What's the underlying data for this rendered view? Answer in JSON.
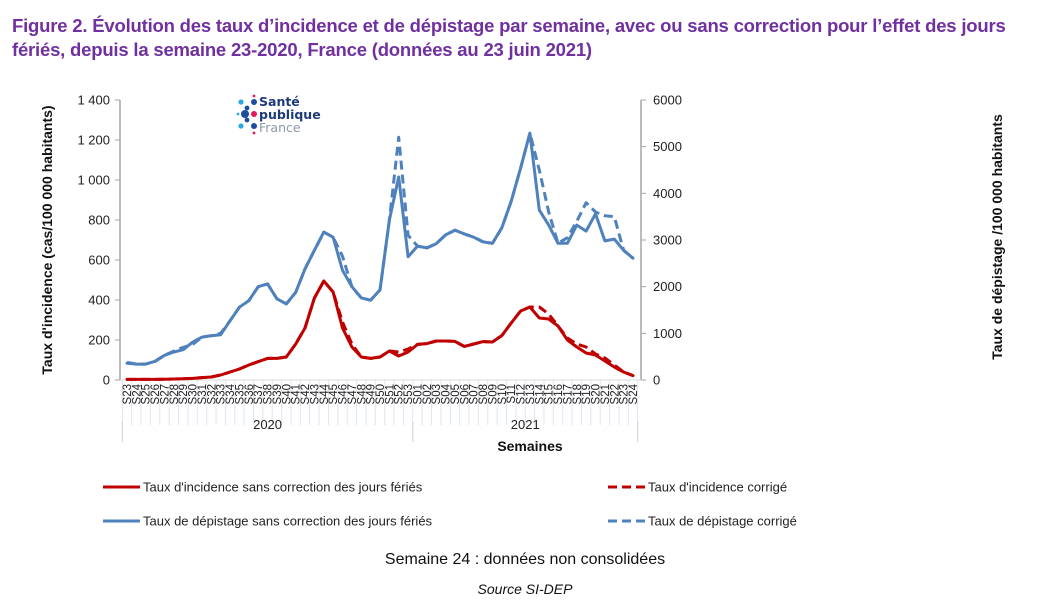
{
  "figure": {
    "title": "Figure 2. Évolution des taux d’incidence et de dépistage par semaine, avec ou sans correction pour l’effet des jours fériés, depuis la semaine 23-2020, France (données au 23 juin 2021)",
    "note": "Semaine 24 : données non consolidées",
    "source": "Source SI-DEP",
    "logo": {
      "line1": "Santé",
      "line2": "publique",
      "line3": "France",
      "colors": {
        "navy": "#1d4e9e",
        "cyan": "#29a9e0",
        "pink": "#e4195b"
      }
    }
  },
  "colors": {
    "incidence": "#c00000",
    "depistage": "#4f81bd",
    "axis": "#a6a6a6",
    "title": "#7030a0"
  },
  "chart_data": {
    "type": "line",
    "title": "Figure 2. Évolution des taux d’incidence et de dépistage par semaine, avec ou sans correction pour l’effet des jours fériés, depuis la semaine 23-2020, France (données au 23 juin 2021)",
    "xlabel": "Semaines",
    "ylabel": "Taux d'incidence (cas/100 000 habitants)",
    "y2label": "Taux de dépistage /100 000 habitants",
    "ylim": [
      0,
      1400
    ],
    "y2lim": [
      0,
      6000
    ],
    "yticks": [
      "0",
      "200",
      "400",
      "600",
      "800",
      "1 000",
      "1 200",
      "1 400"
    ],
    "y2ticks": [
      "0",
      "1000",
      "2000",
      "3000",
      "4000",
      "5000",
      "6000"
    ],
    "grid": false,
    "legend_position": "bottom",
    "year_groups": [
      {
        "label": "2020",
        "first_index": 0,
        "last_index": 30
      },
      {
        "label": "2021",
        "first_index": 31,
        "last_index": 54
      }
    ],
    "categories": [
      "S23",
      "S24",
      "S25",
      "S26",
      "S27",
      "S28",
      "S29",
      "S30",
      "S31",
      "S32",
      "S33",
      "S34",
      "S35",
      "S36",
      "S37",
      "S38",
      "S39",
      "S40",
      "S41",
      "S42",
      "S43",
      "S44",
      "S45",
      "S46",
      "S47",
      "S48",
      "S49",
      "S50",
      "S51",
      "S52",
      "S53",
      "S01",
      "S02",
      "S03",
      "S04",
      "S05",
      "S06",
      "S07",
      "S08",
      "S09",
      "S10",
      "S11",
      "S12",
      "S13",
      "S14",
      "S15",
      "S16",
      "S17",
      "S18",
      "S19",
      "S20",
      "S21",
      "S22",
      "S23",
      "S24"
    ],
    "series": [
      {
        "name": "Taux d'incidence sans correction des jours fériés",
        "axis": "left",
        "style": "solid",
        "color": "#c00000",
        "values": [
          3,
          3,
          3,
          3,
          4,
          5,
          6,
          8,
          12,
          15,
          25,
          40,
          55,
          75,
          92,
          108,
          108,
          115,
          180,
          260,
          410,
          495,
          440,
          260,
          165,
          115,
          108,
          115,
          145,
          120,
          140,
          178,
          182,
          195,
          195,
          193,
          168,
          180,
          192,
          190,
          222,
          285,
          345,
          365,
          310,
          305,
          270,
          200,
          165,
          135,
          125,
          95,
          65,
          40,
          22
        ]
      },
      {
        "name": "Taux d'incidence corrigé",
        "axis": "left",
        "style": "dashed",
        "color": "#c00000",
        "values": [
          3,
          3,
          3,
          3,
          4,
          5,
          6,
          8,
          12,
          15,
          25,
          40,
          55,
          75,
          92,
          108,
          108,
          115,
          180,
          260,
          410,
          495,
          440,
          290,
          180,
          115,
          108,
          115,
          145,
          140,
          155,
          178,
          182,
          195,
          195,
          193,
          168,
          180,
          192,
          190,
          222,
          285,
          345,
          365,
          365,
          330,
          270,
          210,
          180,
          165,
          130,
          110,
          75,
          40,
          22
        ]
      },
      {
        "name": "Taux de dépistage sans correction des jours fériés",
        "axis": "right",
        "style": "solid",
        "color": "#4f81bd",
        "values": [
          360,
          340,
          340,
          400,
          530,
          600,
          650,
          810,
          920,
          950,
          970,
          1270,
          1560,
          1700,
          2000,
          2060,
          1740,
          1630,
          1880,
          2380,
          2780,
          3170,
          3060,
          2350,
          2000,
          1760,
          1710,
          1930,
          3430,
          4350,
          2640,
          2870,
          2830,
          2920,
          3110,
          3210,
          3130,
          3060,
          2960,
          2930,
          3260,
          3830,
          4540,
          5290,
          3640,
          3320,
          2930,
          2930,
          3320,
          3190,
          3560,
          2980,
          3020,
          2780,
          2610
        ]
      },
      {
        "name": "Taux de dépistage corrigé",
        "axis": "right",
        "style": "dashed",
        "color": "#4f81bd",
        "values": [
          380,
          340,
          340,
          400,
          530,
          620,
          700,
          760,
          920,
          950,
          1000,
          1270,
          1560,
          1700,
          2000,
          2060,
          1740,
          1630,
          1880,
          2380,
          2780,
          3170,
          3060,
          2650,
          2000,
          1760,
          1710,
          1930,
          3430,
          5200,
          3100,
          2870,
          2830,
          2920,
          3110,
          3210,
          3130,
          3060,
          2960,
          2930,
          3260,
          3830,
          4540,
          5290,
          4500,
          3600,
          2930,
          3050,
          3400,
          3800,
          3600,
          3520,
          3500,
          2780,
          2610
        ]
      }
    ],
    "legend": [
      {
        "label": "Taux d'incidence sans correction des jours fériés",
        "color": "#c00000",
        "style": "solid"
      },
      {
        "label": "Taux d'incidence corrigé",
        "color": "#c00000",
        "style": "dashed"
      },
      {
        "label": "Taux de dépistage sans correction des jours fériés",
        "color": "#4f81bd",
        "style": "solid"
      },
      {
        "label": "Taux de dépistage corrigé",
        "color": "#4f81bd",
        "style": "dashed"
      }
    ]
  }
}
